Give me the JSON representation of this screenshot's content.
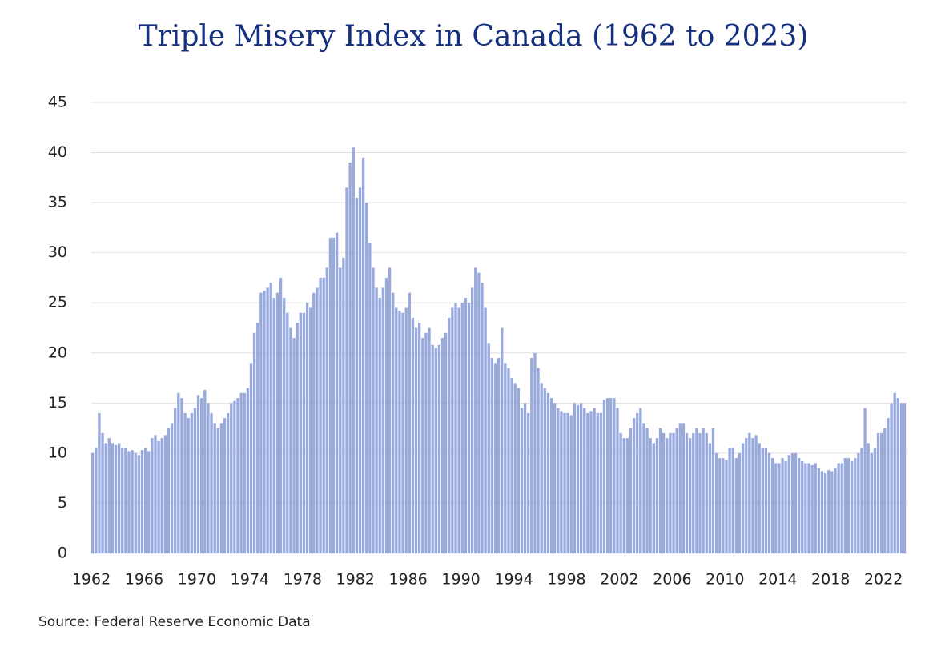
{
  "chart_data": {
    "type": "bar",
    "title": "Triple Misery Index in Canada (1962 to 2023)",
    "source": "Source: Federal Reserve Economic Data",
    "color": "#98a9dd",
    "grid": true,
    "xlim": [
      1962,
      2023.75
    ],
    "xticks": [
      1962,
      1966,
      1970,
      1974,
      1978,
      1982,
      1986,
      1990,
      1994,
      1998,
      2002,
      2006,
      2010,
      2014,
      2018,
      2022
    ],
    "ylim": [
      0,
      45
    ],
    "yticks": [
      0,
      5,
      10,
      15,
      20,
      25,
      30,
      35,
      40,
      45
    ],
    "x": [
      1962,
      1962.25,
      1962.5,
      1962.75,
      1963,
      1963.25,
      1963.5,
      1963.75,
      1964,
      1964.25,
      1964.5,
      1964.75,
      1965,
      1965.25,
      1965.5,
      1965.75,
      1966,
      1966.25,
      1966.5,
      1966.75,
      1967,
      1967.25,
      1967.5,
      1967.75,
      1968,
      1968.25,
      1968.5,
      1968.75,
      1969,
      1969.25,
      1969.5,
      1969.75,
      1970,
      1970.25,
      1970.5,
      1970.75,
      1971,
      1971.25,
      1971.5,
      1971.75,
      1972,
      1972.25,
      1972.5,
      1972.75,
      1973,
      1973.25,
      1973.5,
      1973.75,
      1974,
      1974.25,
      1974.5,
      1974.75,
      1975,
      1975.25,
      1975.5,
      1975.75,
      1976,
      1976.25,
      1976.5,
      1976.75,
      1977,
      1977.25,
      1977.5,
      1977.75,
      1978,
      1978.25,
      1978.5,
      1978.75,
      1979,
      1979.25,
      1979.5,
      1979.75,
      1980,
      1980.25,
      1980.5,
      1980.75,
      1981,
      1981.25,
      1981.5,
      1981.75,
      1982,
      1982.25,
      1982.5,
      1982.75,
      1983,
      1983.25,
      1983.5,
      1983.75,
      1984,
      1984.25,
      1984.5,
      1984.75,
      1985,
      1985.25,
      1985.5,
      1985.75,
      1986,
      1986.25,
      1986.5,
      1986.75,
      1987,
      1987.25,
      1987.5,
      1987.75,
      1988,
      1988.25,
      1988.5,
      1988.75,
      1989,
      1989.25,
      1989.5,
      1989.75,
      1990,
      1990.25,
      1990.5,
      1990.75,
      1991,
      1991.25,
      1991.5,
      1991.75,
      1992,
      1992.25,
      1992.5,
      1992.75,
      1993,
      1993.25,
      1993.5,
      1993.75,
      1994,
      1994.25,
      1994.5,
      1994.75,
      1995,
      1995.25,
      1995.5,
      1995.75,
      1996,
      1996.25,
      1996.5,
      1996.75,
      1997,
      1997.25,
      1997.5,
      1997.75,
      1998,
      1998.25,
      1998.5,
      1998.75,
      1999,
      1999.25,
      1999.5,
      1999.75,
      2000,
      2000.25,
      2000.5,
      2000.75,
      2001,
      2001.25,
      2001.5,
      2001.75,
      2002,
      2002.25,
      2002.5,
      2002.75,
      2003,
      2003.25,
      2003.5,
      2003.75,
      2004,
      2004.25,
      2004.5,
      2004.75,
      2005,
      2005.25,
      2005.5,
      2005.75,
      2006,
      2006.25,
      2006.5,
      2006.75,
      2007,
      2007.25,
      2007.5,
      2007.75,
      2008,
      2008.25,
      2008.5,
      2008.75,
      2009,
      2009.25,
      2009.5,
      2009.75,
      2010,
      2010.25,
      2010.5,
      2010.75,
      2011,
      2011.25,
      2011.5,
      2011.75,
      2012,
      2012.25,
      2012.5,
      2012.75,
      2013,
      2013.25,
      2013.5,
      2013.75,
      2014,
      2014.25,
      2014.5,
      2014.75,
      2015,
      2015.25,
      2015.5,
      2015.75,
      2016,
      2016.25,
      2016.5,
      2016.75,
      2017,
      2017.25,
      2017.5,
      2017.75,
      2018,
      2018.25,
      2018.5,
      2018.75,
      2019,
      2019.25,
      2019.5,
      2019.75,
      2020,
      2020.25,
      2020.5,
      2020.75,
      2021,
      2021.25,
      2021.5,
      2021.75,
      2022,
      2022.25,
      2022.5,
      2022.75,
      2023,
      2023.25,
      2023.5
    ],
    "values": [
      10,
      10.5,
      14,
      12,
      11,
      11.5,
      11,
      10.8,
      11,
      10.5,
      10.5,
      10.2,
      10.3,
      10,
      9.8,
      10.3,
      10.5,
      10.2,
      11.5,
      11.8,
      11.2,
      11.5,
      11.8,
      12.5,
      13,
      14.5,
      16,
      15.5,
      14,
      13.5,
      14,
      14.5,
      15.8,
      15.5,
      16.3,
      15,
      14,
      13,
      12.5,
      13,
      13.5,
      14,
      15,
      15.2,
      15.5,
      16,
      16,
      16.5,
      19,
      22,
      23,
      26,
      26.2,
      26.5,
      27,
      25.5,
      26,
      27.5,
      25.5,
      24,
      22.5,
      21.5,
      23,
      24,
      24,
      25,
      24.5,
      26,
      26.5,
      27.5,
      27.5,
      28.5,
      31.5,
      31.5,
      32,
      28.5,
      29.5,
      36.5,
      39,
      40.5,
      35.5,
      36.5,
      39.5,
      35,
      31,
      28.5,
      26.5,
      25.5,
      26.5,
      27.5,
      28.5,
      26,
      24.5,
      24.2,
      24,
      24.5,
      26,
      23.5,
      22.5,
      23,
      21.5,
      22,
      22.5,
      20.8,
      20.5,
      20.8,
      21.5,
      22,
      23.5,
      24.5,
      25,
      24.5,
      25,
      25.5,
      25,
      26.5,
      28.5,
      28,
      27,
      24.5,
      21,
      19.5,
      19,
      19.5,
      22.5,
      19,
      18.5,
      17.5,
      17,
      16.5,
      14.5,
      15,
      14,
      19.5,
      20,
      18.5,
      17,
      16.5,
      16,
      15.5,
      15,
      14.5,
      14.2,
      14,
      14,
      13.8,
      15,
      14.8,
      15,
      14.5,
      14,
      14.2,
      14.5,
      14,
      14,
      15.3,
      15.5,
      15.5,
      15.5,
      14.5,
      12,
      11.5,
      11.5,
      12.5,
      13.5,
      14,
      14.5,
      13,
      12.5,
      11.5,
      11,
      11.5,
      12.5,
      12,
      11.5,
      12,
      12,
      12.5,
      13,
      13,
      12,
      11.5,
      12,
      12.5,
      12,
      12.5,
      12,
      11,
      12.5,
      10,
      9.5,
      9.5,
      9.3,
      10.5,
      10.5,
      9.5,
      10,
      11,
      11.5,
      12,
      11.5,
      11.8,
      11,
      10.5,
      10.5,
      10,
      9.5,
      9,
      9,
      9.5,
      9.2,
      9.8,
      10,
      10,
      9.5,
      9.2,
      9,
      9,
      8.8,
      9,
      8.5,
      8.2,
      8,
      8.3,
      8.2,
      8.5,
      9,
      9,
      9.5,
      9.5,
      9.2,
      9.5,
      10,
      10.5,
      14.5,
      11,
      10,
      10.5,
      12,
      12,
      12.5,
      13.5,
      15,
      16,
      15.5,
      15,
      15
    ]
  }
}
